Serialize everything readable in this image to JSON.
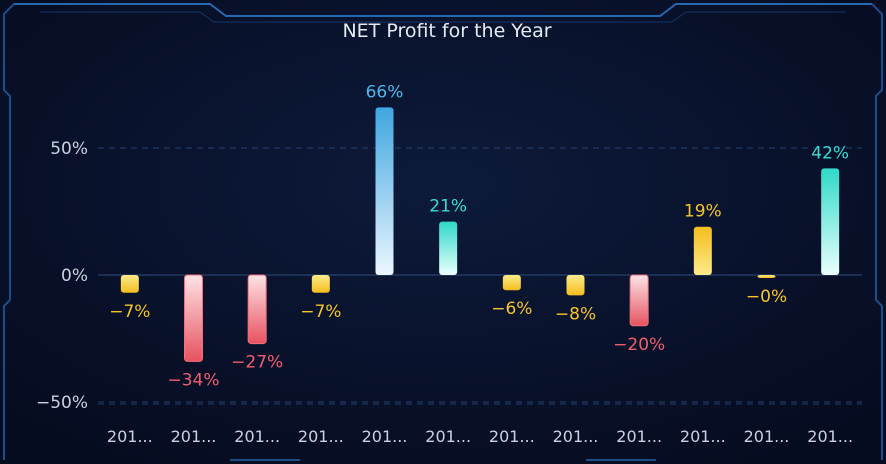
{
  "chart_data": {
    "type": "bar",
    "title": "NET Profit for the Year",
    "xlabel": "",
    "ylabel": "",
    "categories": [
      "201...",
      "201...",
      "201...",
      "201...",
      "201...",
      "201...",
      "201...",
      "201...",
      "201...",
      "201...",
      "201...",
      "201..."
    ],
    "values": [
      -7,
      -34,
      -27,
      -7,
      66,
      21,
      -6,
      -8,
      -20,
      19,
      -0.3,
      42
    ],
    "data_labels": [
      "−7%",
      "−34%",
      "−27%",
      "−7%",
      "66%",
      "21%",
      "−6%",
      "−8%",
      "−20%",
      "19%",
      "−0%",
      "42%"
    ],
    "yticks": [
      50,
      0,
      -50
    ],
    "ytick_labels": [
      "50%",
      "0%",
      "−50%"
    ],
    "ylim": [
      -60,
      66
    ],
    "grid": true,
    "colors": {
      "large_negative": "#ee5f6e",
      "small_change": "#f5c52b",
      "positive_blue": "#4db8ea",
      "positive_teal": "#36ddd0",
      "background": "#070e24"
    },
    "bar_styles": [
      "small",
      "loss",
      "loss",
      "small",
      "blue",
      "teal",
      "small",
      "small",
      "loss",
      "small",
      "small",
      "teal"
    ]
  }
}
